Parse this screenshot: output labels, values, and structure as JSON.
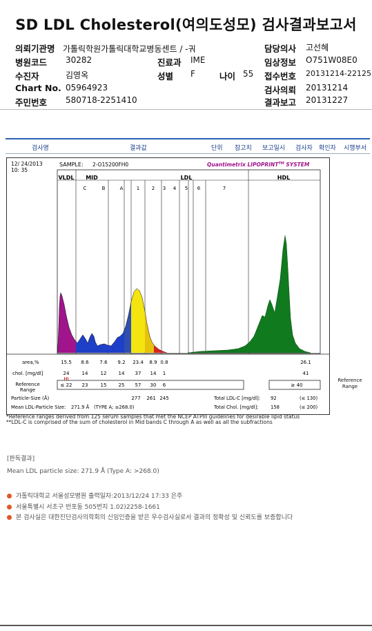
{
  "title": "SD LDL Cholesterol(여의도성모) 검사결과보고서",
  "info": {
    "hospital_label": "의뢰기관명",
    "hospital": "가톨릭학원가톨릭대학교병동센트 / -궈",
    "code_label": "병원코드",
    "code": "30282",
    "dept_label": "진료과",
    "dept": "IME",
    "patient_label": "수진자",
    "patient": "김영옥",
    "sex_label": "성별",
    "sex": "F",
    "age_label": "나이",
    "age": "55",
    "chart_label": "Chart No.",
    "chart": "05964923",
    "rrn_label": "주민번호",
    "rrn": "580718-2251410",
    "doctor_label": "담당의사",
    "doctor": "고선혜",
    "clinical_label": "임상정보",
    "clinical": "O751W08E0",
    "receipt_label": "접수번호",
    "receipt": "20131214-22125",
    "request_label": "검사의뢰",
    "request": "20131214",
    "report_label": "결과보고",
    "report": "20131227"
  },
  "table_header": [
    "검사명",
    "결과값",
    "단위",
    "참고치",
    "보고일시",
    "검사자",
    "확인자",
    "시행부서"
  ],
  "chart_data": {
    "type": "area",
    "date": "12/ 24/2013",
    "time": "10: 35",
    "sample_label": "SAMPLE:",
    "sample": "2-O15200FH0",
    "brand_a": "Quantimetrix LIPOPRINT",
    "brand_tm": "TM",
    "brand_b": " SYSTEM",
    "regions": [
      "VLDL",
      "MID",
      "LDL",
      "HDL"
    ],
    "bands": [
      "C",
      "B",
      "A",
      "1",
      "2",
      "3",
      "4",
      "5",
      "6",
      "7"
    ],
    "area_label": "area,%",
    "area": [
      "15.5",
      "8.6",
      "7.6",
      "9.2",
      "23.4",
      "8.9",
      "0.8",
      "26.1"
    ],
    "chol_label": "chol. [mg/dl]",
    "chol": [
      "24",
      "14",
      "12",
      "14",
      "37",
      "14",
      "1",
      "41"
    ],
    "flag": "HI",
    "ref_label_a": "Reference",
    "ref_label_b": "Range",
    "ref": [
      "≤ 22",
      "23",
      "15",
      "25",
      "57",
      "30",
      "6",
      "≥ 40"
    ],
    "size_label": "Particle-Size (Å)",
    "sizes": [
      "277",
      "261",
      "245"
    ],
    "mean_label": "Mean LDL-Particle Size:",
    "mean": "271.9 Å",
    "mean_type": "(TYPE A; ≥268.0)",
    "total_ldl_label": "Total LDL-C [mg/dl]:",
    "total_ldl": "92",
    "total_ldl_ref": "(≤ 130)",
    "total_chol_label": "Total Chol. [mg/dl]:",
    "total_chol": "158",
    "total_chol_ref": "(≤ 200)"
  },
  "notes": [
    "*Reference ranges derived from 125 serum samples that met the NCEP ATPIII guidelines for desirable lipid status",
    "**LDL-C is comprised of the sum of cholesterol in Mid bands C through A as well as all the subfractions"
  ],
  "interpretation_title": "[판독결과]",
  "interpretation": "Mean LDL particle size: 271.9 Å (Type A: >268.0)",
  "footer": [
    "가톨릭대학교 서울성모병원        출력일자:2013/12/24 17:33 은주",
    "서울특별시 서초구 반포동 505번지 1.02)2258-1661",
    "본 검사실은 대한진단검사의학회의 신임인증을 받은 우수검사실로서 결과의 정확성 및 신뢰도를 보증합니다"
  ],
  "colors": {
    "vldl": "#a0148c",
    "mid": "#1e3fc8",
    "ldl1": "#f4e410",
    "ldl_small": "#d8251d",
    "hdl": "#0f7a1e",
    "brand": "#a0148c",
    "flag": "#c00000"
  }
}
